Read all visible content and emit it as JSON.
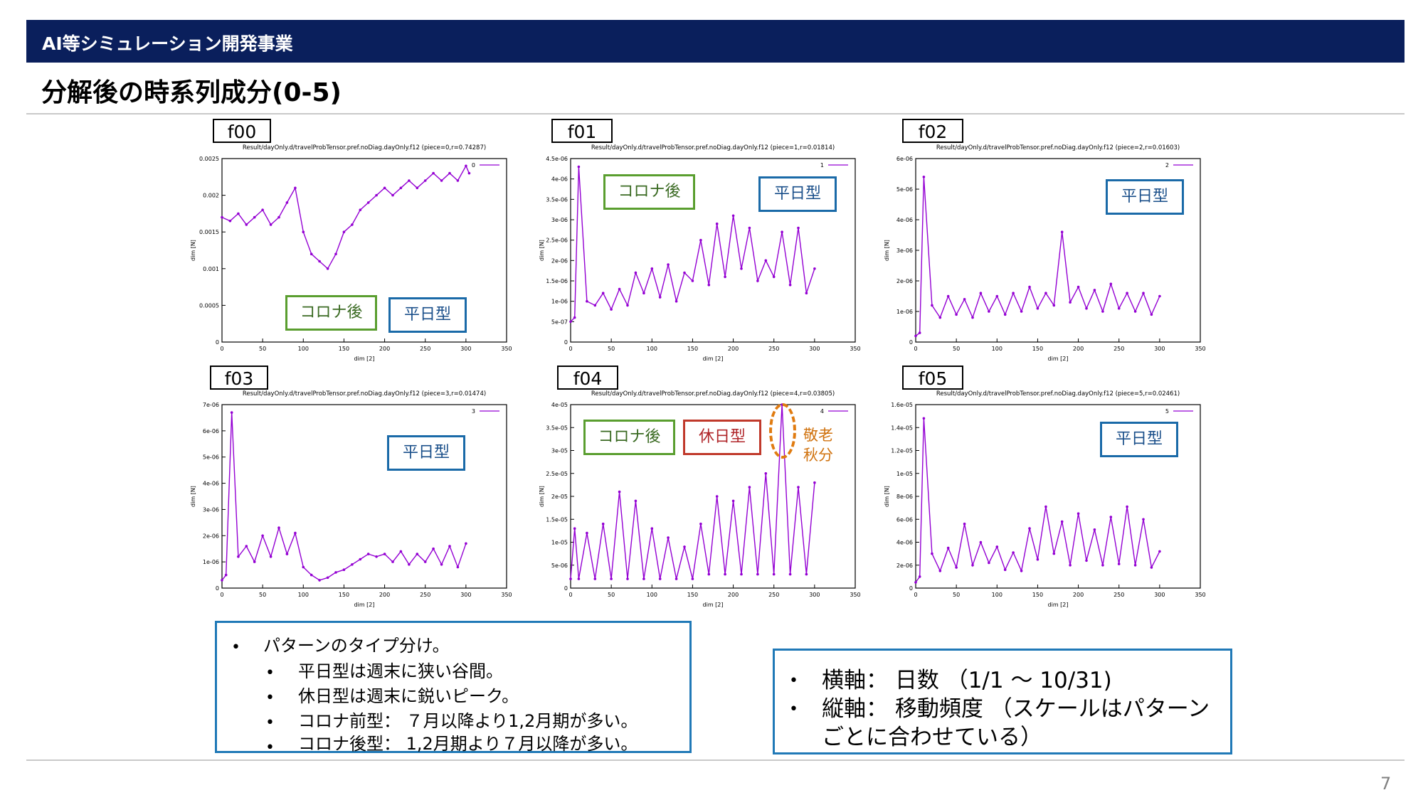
{
  "header": {
    "banner": "AI等シミュレーション開発事業",
    "title": "分解後の時系列成分(0-5)"
  },
  "colors": {
    "banner": "#0a1f5c",
    "series": "#9400d3",
    "green_badge": "#5a9e2f",
    "blue_badge": "#1a6aa8",
    "red_badge": "#c0392b",
    "highlight": "#e07b10"
  },
  "panels": [
    {
      "tag": "f00",
      "badges": [
        "コロナ後",
        "平日型"
      ]
    },
    {
      "tag": "f01",
      "badges": [
        "コロナ後",
        "平日型"
      ]
    },
    {
      "tag": "f02",
      "badges": [
        "平日型"
      ]
    },
    {
      "tag": "f03",
      "badges": [
        "平日型"
      ]
    },
    {
      "tag": "f04",
      "badges": [
        "コロナ後",
        "休日型"
      ],
      "note_line1": "敬老",
      "note_line2": "秋分"
    },
    {
      "tag": "f05",
      "badges": [
        "平日型"
      ]
    }
  ],
  "chart_data": [
    {
      "type": "line",
      "title": "Result/dayOnly.d/travelProbTensor.pref.noDiag.dayOnly.f12 (piece=0,r=0.74287)",
      "xlabel": "dim [2]",
      "ylabel": "dim [N]",
      "legend": "0",
      "legend_position": "top-right",
      "xlim": [
        0,
        350
      ],
      "ylim": [
        0,
        0.0025
      ],
      "yticks": [
        "0",
        "0.0005",
        "0.001",
        "0.0015",
        "0.002",
        "0.0025"
      ],
      "xticks": [
        "0",
        "50",
        "100",
        "150",
        "200",
        "250",
        "300",
        "350"
      ],
      "series": [
        {
          "name": "0",
          "x": [
            0,
            10,
            20,
            30,
            40,
            50,
            60,
            70,
            80,
            90,
            100,
            110,
            120,
            130,
            140,
            150,
            160,
            170,
            180,
            190,
            200,
            210,
            220,
            230,
            240,
            250,
            260,
            270,
            280,
            290,
            300,
            304
          ],
          "y": [
            0.0017,
            0.00165,
            0.00175,
            0.0016,
            0.0017,
            0.0018,
            0.0016,
            0.0017,
            0.0019,
            0.0021,
            0.0015,
            0.0012,
            0.0011,
            0.001,
            0.0012,
            0.0015,
            0.0016,
            0.0018,
            0.0019,
            0.002,
            0.0021,
            0.002,
            0.0021,
            0.0022,
            0.0021,
            0.0022,
            0.0023,
            0.0022,
            0.0023,
            0.0022,
            0.0024,
            0.0023
          ]
        }
      ]
    },
    {
      "type": "line",
      "title": "Result/dayOnly.d/travelProbTensor.pref.noDiag.dayOnly.f12 (piece=1,r=0.01814)",
      "xlabel": "dim [2]",
      "ylabel": "dim [N]",
      "legend": "1",
      "legend_position": "top-right",
      "xlim": [
        0,
        350
      ],
      "ylim": [
        0,
        4.5e-06
      ],
      "yticks": [
        "0",
        "5e-07",
        "1e-06",
        "1.5e-06",
        "2e-06",
        "2.5e-06",
        "3e-06",
        "3.5e-06",
        "4e-06",
        "4.5e-06"
      ],
      "xticks": [
        "0",
        "50",
        "100",
        "150",
        "200",
        "250",
        "300",
        "350"
      ],
      "series": [
        {
          "name": "1",
          "x": [
            0,
            5,
            10,
            20,
            30,
            40,
            50,
            60,
            70,
            80,
            90,
            100,
            110,
            120,
            130,
            140,
            150,
            160,
            170,
            180,
            190,
            200,
            210,
            220,
            230,
            240,
            250,
            260,
            270,
            280,
            290,
            300
          ],
          "y": [
            5e-07,
            6e-07,
            4.3e-06,
            1e-06,
            9e-07,
            1.2e-06,
            8e-07,
            1.3e-06,
            9e-07,
            1.7e-06,
            1.2e-06,
            1.8e-06,
            1.1e-06,
            1.9e-06,
            1e-06,
            1.7e-06,
            1.5e-06,
            2.5e-06,
            1.4e-06,
            2.9e-06,
            1.6e-06,
            3.1e-06,
            1.8e-06,
            2.8e-06,
            1.5e-06,
            2e-06,
            1.6e-06,
            2.7e-06,
            1.4e-06,
            2.8e-06,
            1.2e-06,
            1.8e-06
          ]
        }
      ]
    },
    {
      "type": "line",
      "title": "Result/dayOnly.d/travelProbTensor.pref.noDiag.dayOnly.f12 (piece=2,r=0.01603)",
      "xlabel": "dim [2]",
      "ylabel": "dim [N]",
      "legend": "2",
      "legend_position": "top-right",
      "xlim": [
        0,
        350
      ],
      "ylim": [
        0,
        6e-06
      ],
      "yticks": [
        "0",
        "1e-06",
        "2e-06",
        "3e-06",
        "4e-06",
        "5e-06",
        "6e-06"
      ],
      "xticks": [
        "0",
        "50",
        "100",
        "150",
        "200",
        "250",
        "300",
        "350"
      ],
      "series": [
        {
          "name": "2",
          "x": [
            0,
            5,
            10,
            20,
            30,
            40,
            50,
            60,
            70,
            80,
            90,
            100,
            110,
            120,
            130,
            140,
            150,
            160,
            170,
            180,
            190,
            200,
            210,
            220,
            230,
            240,
            250,
            260,
            270,
            280,
            290,
            300
          ],
          "y": [
            2e-07,
            3e-07,
            5.4e-06,
            1.2e-06,
            8e-07,
            1.5e-06,
            9e-07,
            1.4e-06,
            8e-07,
            1.6e-06,
            1e-06,
            1.5e-06,
            9e-07,
            1.6e-06,
            1e-06,
            1.8e-06,
            1.1e-06,
            1.6e-06,
            1.2e-06,
            3.6e-06,
            1.3e-06,
            1.8e-06,
            1.1e-06,
            1.7e-06,
            1e-06,
            1.9e-06,
            1.1e-06,
            1.6e-06,
            1e-06,
            1.6e-06,
            9e-07,
            1.5e-06
          ]
        }
      ]
    },
    {
      "type": "line",
      "title": "Result/dayOnly.d/travelProbTensor.pref.noDiag.dayOnly.f12 (piece=3,r=0.01474)",
      "xlabel": "dim [2]",
      "ylabel": "dim [N]",
      "legend": "3",
      "legend_position": "top-right",
      "xlim": [
        0,
        350
      ],
      "ylim": [
        0,
        7e-06
      ],
      "yticks": [
        "0",
        "1e-06",
        "2e-06",
        "3e-06",
        "4e-06",
        "5e-06",
        "6e-06",
        "7e-06"
      ],
      "xticks": [
        "0",
        "50",
        "100",
        "150",
        "200",
        "250",
        "300",
        "350"
      ],
      "series": [
        {
          "name": "3",
          "x": [
            0,
            5,
            12,
            20,
            30,
            40,
            50,
            60,
            70,
            80,
            90,
            100,
            110,
            120,
            130,
            140,
            150,
            160,
            170,
            180,
            190,
            200,
            210,
            220,
            230,
            240,
            250,
            260,
            270,
            280,
            290,
            300
          ],
          "y": [
            3e-07,
            5e-07,
            6.7e-06,
            1.2e-06,
            1.6e-06,
            1e-06,
            2e-06,
            1.2e-06,
            2.3e-06,
            1.3e-06,
            2.1e-06,
            8e-07,
            5e-07,
            3e-07,
            4e-07,
            6e-07,
            7e-07,
            9e-07,
            1.1e-06,
            1.3e-06,
            1.2e-06,
            1.3e-06,
            1e-06,
            1.4e-06,
            9e-07,
            1.3e-06,
            1e-06,
            1.5e-06,
            9e-07,
            1.6e-06,
            8e-07,
            1.7e-06
          ]
        }
      ]
    },
    {
      "type": "line",
      "title": "Result/dayOnly.d/travelProbTensor.pref.noDiag.dayOnly.f12 (piece=4,r=0.03805)",
      "xlabel": "dim [2]",
      "ylabel": "dim [N]",
      "legend": "4",
      "legend_position": "top-right",
      "xlim": [
        0,
        350
      ],
      "ylim": [
        0,
        4e-05
      ],
      "yticks": [
        "0",
        "5e-06",
        "1e-05",
        "1.5e-05",
        "2e-05",
        "2.5e-05",
        "3e-05",
        "3.5e-05",
        "4e-05"
      ],
      "xticks": [
        "0",
        "50",
        "100",
        "150",
        "200",
        "250",
        "300",
        "350"
      ],
      "series": [
        {
          "name": "4",
          "x": [
            0,
            5,
            10,
            20,
            30,
            40,
            50,
            60,
            70,
            80,
            90,
            100,
            110,
            120,
            130,
            140,
            150,
            160,
            170,
            180,
            190,
            200,
            210,
            220,
            230,
            240,
            250,
            260,
            270,
            280,
            290,
            300
          ],
          "y": [
            2e-06,
            1.3e-05,
            2e-06,
            1.2e-05,
            2e-06,
            1.4e-05,
            2e-06,
            2.1e-05,
            2e-06,
            1.9e-05,
            2e-06,
            1.3e-05,
            2e-06,
            1.1e-05,
            2e-06,
            9e-06,
            2e-06,
            1.4e-05,
            3e-06,
            2e-05,
            3e-06,
            1.9e-05,
            3e-06,
            2.2e-05,
            3e-06,
            2.5e-05,
            3e-06,
            4e-05,
            3e-06,
            2.2e-05,
            3e-06,
            2.3e-05
          ]
        }
      ]
    },
    {
      "type": "line",
      "title": "Result/dayOnly.d/travelProbTensor.pref.noDiag.dayOnly.f12 (piece=5,r=0.02461)",
      "xlabel": "dim [2]",
      "ylabel": "dim [N]",
      "legend": "5",
      "legend_position": "top-right",
      "xlim": [
        0,
        350
      ],
      "ylim": [
        0,
        1.6e-05
      ],
      "yticks": [
        "0",
        "2e-06",
        "4e-06",
        "6e-06",
        "8e-06",
        "1e-05",
        "1.2e-05",
        "1.4e-05",
        "1.6e-05"
      ],
      "xticks": [
        "0",
        "50",
        "100",
        "150",
        "200",
        "250",
        "300",
        "350"
      ],
      "series": [
        {
          "name": "5",
          "x": [
            0,
            5,
            10,
            20,
            30,
            40,
            50,
            60,
            70,
            80,
            90,
            100,
            110,
            120,
            130,
            140,
            150,
            160,
            170,
            180,
            190,
            200,
            210,
            220,
            230,
            240,
            250,
            260,
            270,
            280,
            290,
            300
          ],
          "y": [
            5e-07,
            1e-06,
            1.48e-05,
            3e-06,
            1.5e-06,
            3.5e-06,
            1.8e-06,
            5.6e-06,
            2e-06,
            4e-06,
            2.2e-06,
            3.6e-06,
            1.6e-06,
            3.1e-06,
            1.5e-06,
            5.2e-06,
            2.5e-06,
            7.1e-06,
            3e-06,
            5.8e-06,
            2e-06,
            6.5e-06,
            2.4e-06,
            5.1e-06,
            2e-06,
            6.2e-06,
            2.1e-06,
            7.1e-06,
            2e-06,
            6e-06,
            1.8e-06,
            3.2e-06
          ]
        }
      ]
    }
  ],
  "left_box": {
    "heading": "パターンのタイプ分け。",
    "items": [
      "平日型は週末に狭い谷間。",
      "休日型は週末に鋭いピーク。",
      "コロナ前型： ７月以降より1,2月期が多い。",
      "コロナ後型： 1,2月期より７月以降が多い。"
    ]
  },
  "right_box": {
    "line1": "横軸： 日数 （1/1 ～ 10/31)",
    "line2": "縦軸： 移動頻度 （スケールはパターン",
    "line3": "ごとに合わせている）"
  },
  "bullet_glyph": "•",
  "footer": {
    "page_number": "7"
  }
}
